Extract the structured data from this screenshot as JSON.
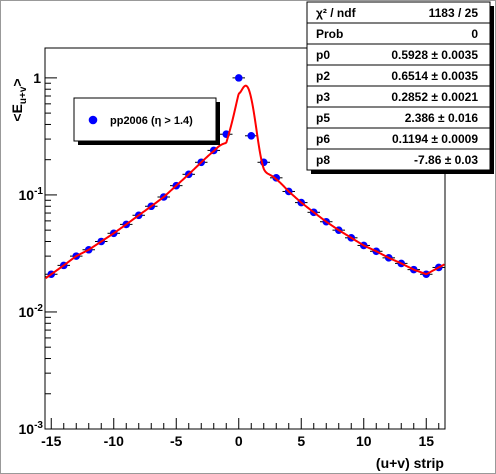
{
  "chart_data": {
    "type": "scatter",
    "xlabel": "(u+v) strip",
    "ylabel": "<E_{u+v}>",
    "xlim": [
      -15.5,
      16.5
    ],
    "ylim": [
      0.001,
      1.8
    ],
    "yscale": "log",
    "grid": false,
    "legend": {
      "placement": "upper-left",
      "entries": [
        "pp2006 (η > 1.4)"
      ]
    },
    "x_ticks": [
      {
        "v": -15,
        "label": "-15"
      },
      {
        "v": -10,
        "label": "-10"
      },
      {
        "v": -5,
        "label": "-5"
      },
      {
        "v": 0,
        "label": "0"
      },
      {
        "v": 5,
        "label": "5"
      },
      {
        "v": 10,
        "label": "10"
      },
      {
        "v": 15,
        "label": "15"
      }
    ],
    "y_ticks": [
      {
        "v": 1,
        "base": "1",
        "exp": ""
      },
      {
        "v": 0.1,
        "base": "10",
        "exp": "-1"
      },
      {
        "v": 0.01,
        "base": "10",
        "exp": "-2"
      },
      {
        "v": 0.001,
        "base": "10",
        "exp": "-3"
      }
    ],
    "series": [
      {
        "name": "pp2006 (η > 1.4)",
        "color": "#0000ff",
        "x": [
          -15,
          -14,
          -13,
          -12,
          -11,
          -10,
          -9,
          -8,
          -7,
          -6,
          -5,
          -4,
          -3,
          -2,
          -1,
          0,
          1,
          2,
          3,
          4,
          5,
          6,
          7,
          8,
          9,
          10,
          11,
          12,
          13,
          14,
          15,
          16
        ],
        "y": [
          0.021,
          0.025,
          0.03,
          0.034,
          0.04,
          0.047,
          0.056,
          0.067,
          0.08,
          0.096,
          0.12,
          0.15,
          0.19,
          0.24,
          0.33,
          1.0,
          0.32,
          0.19,
          0.14,
          0.107,
          0.086,
          0.071,
          0.059,
          0.05,
          0.043,
          0.037,
          0.033,
          0.029,
          0.026,
          0.023,
          0.021,
          0.024
        ]
      }
    ],
    "fit": {
      "color": "#ff0000",
      "x_range": [
        -15.5,
        16.5
      ],
      "peak_x": 0.6
    }
  },
  "stats_box": {
    "rows": [
      {
        "label": "χ² / ndf",
        "value": "1183 / 25"
      },
      {
        "label": "Prob",
        "value": "0"
      },
      {
        "label": "p0",
        "value": "0.5928 ± 0.0035"
      },
      {
        "label": "p2",
        "value": "0.6514 ± 0.0035"
      },
      {
        "label": "p3",
        "value": "0.2852 ± 0.0021"
      },
      {
        "label": "p5",
        "value": "2.386 ± 0.016"
      },
      {
        "label": "p6",
        "value": "0.1194 ± 0.0009"
      },
      {
        "label": "p8",
        "value": "-7.86 ± 0.03"
      }
    ]
  }
}
